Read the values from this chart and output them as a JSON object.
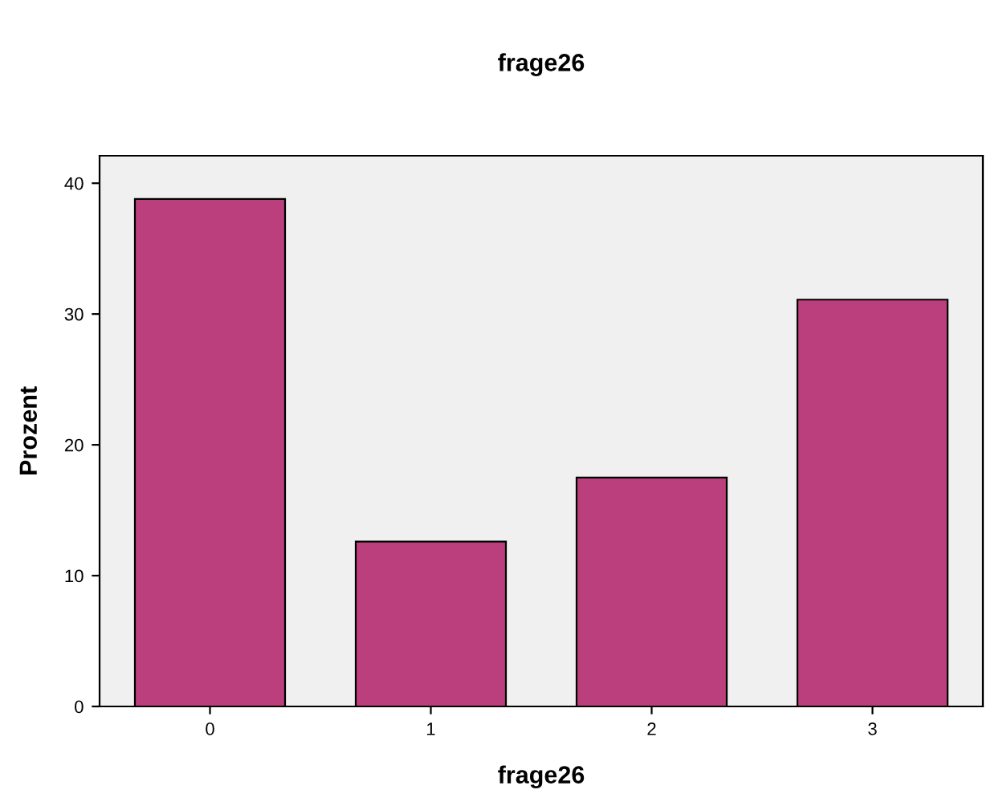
{
  "chart_data": {
    "type": "bar",
    "title": "frage26",
    "xlabel": "frage26",
    "ylabel": "Prozent",
    "categories": [
      "0",
      "1",
      "2",
      "3"
    ],
    "values": [
      38.8,
      12.6,
      17.5,
      31.1
    ],
    "color": "#bb3f7c",
    "ylim": [
      0,
      42.1
    ],
    "yticks": [
      0,
      10,
      20,
      30,
      40
    ],
    "grid": false,
    "legend": false
  }
}
